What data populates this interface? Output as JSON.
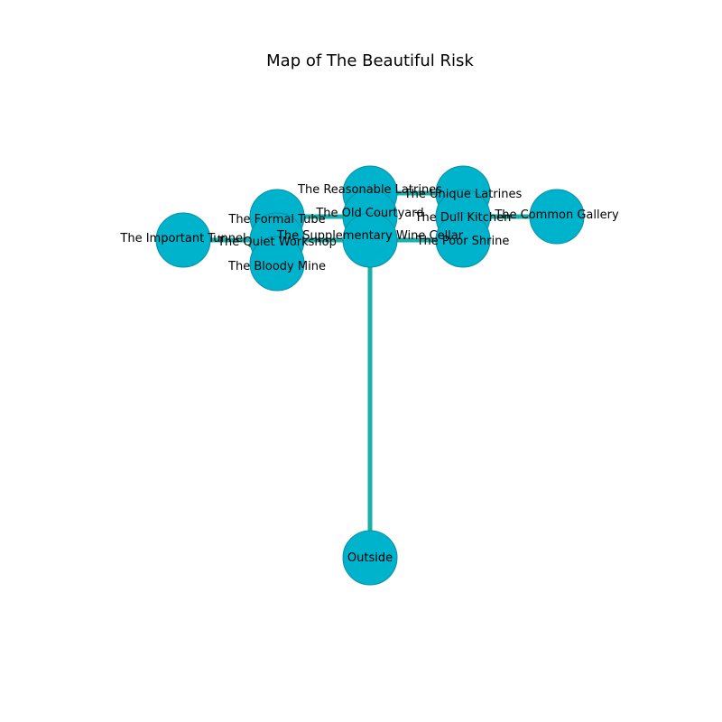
{
  "title": "Map of The Beautiful Risk",
  "colors": {
    "node_fill": "#00B3CC",
    "node_stroke": "#0A8FA3",
    "edge": "#1AAFA8",
    "label": "#000000"
  },
  "nodes": [
    {
      "id": "reasonable_latrines",
      "label": "The Reasonable Latrines"
    },
    {
      "id": "unique_latrines",
      "label": "The Unique Latrines"
    },
    {
      "id": "old_courtyard",
      "label": "The Old Courtyard"
    },
    {
      "id": "common_gallery",
      "label": "The Common Gallery"
    },
    {
      "id": "formal_tube",
      "label": "The Formal Tube"
    },
    {
      "id": "dull_kitchen",
      "label": "The Dull Kitchen"
    },
    {
      "id": "important_tunnel",
      "label": "The Important Tunnel"
    },
    {
      "id": "supplementary_wine_cellar",
      "label": "The Supplementary Wine Cellar"
    },
    {
      "id": "quiet_workshop",
      "label": "The Quiet Workshop"
    },
    {
      "id": "poor_shrine",
      "label": "The Poor Shrine"
    },
    {
      "id": "bloody_mine",
      "label": "The Bloody Mine"
    },
    {
      "id": "outside",
      "label": "Outside"
    }
  ],
  "edges": [
    [
      "reasonable_latrines",
      "unique_latrines"
    ],
    [
      "formal_tube",
      "old_courtyard"
    ],
    [
      "dull_kitchen",
      "common_gallery"
    ],
    [
      "important_tunnel",
      "quiet_workshop"
    ],
    [
      "quiet_workshop",
      "supplementary_wine_cellar"
    ],
    [
      "supplementary_wine_cellar",
      "poor_shrine"
    ],
    [
      "supplementary_wine_cellar",
      "outside"
    ]
  ]
}
